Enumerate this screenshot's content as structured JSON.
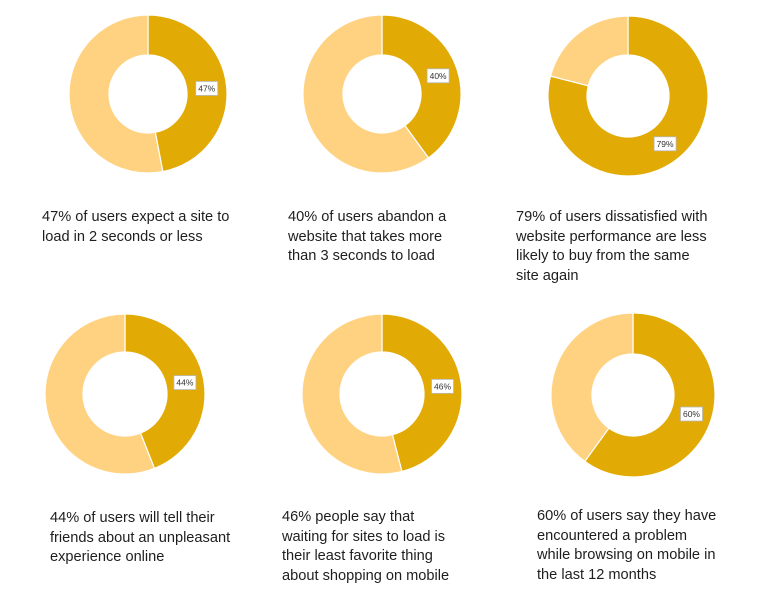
{
  "colors": {
    "value": "#E2AA05",
    "remainder": "#FFD282",
    "label_box_stroke": "#b8b8b8",
    "text": "#1e1e1e"
  },
  "chart_data": [
    {
      "type": "pie",
      "values": [
        47,
        53
      ],
      "data_labels": [
        "47%",
        ""
      ],
      "caption_lines": [
        "47% of users expect a site to",
        "load in 2 seconds or less"
      ]
    },
    {
      "type": "pie",
      "values": [
        40,
        60
      ],
      "data_labels": [
        "40%",
        ""
      ],
      "caption_lines": [
        "40% of users abandon a",
        "website that takes more",
        "than 3 seconds to load"
      ]
    },
    {
      "type": "pie",
      "values": [
        79,
        21
      ],
      "data_labels": [
        "79%",
        ""
      ],
      "caption_lines": [
        "79% of users dissatisfied with",
        "website performance are less",
        "likely to buy from the same",
        "site again"
      ]
    },
    {
      "type": "pie",
      "values": [
        44,
        56
      ],
      "data_labels": [
        "44%",
        ""
      ],
      "caption_lines": [
        "44% of users will tell their",
        "friends about an unpleasant",
        "experience online"
      ]
    },
    {
      "type": "pie",
      "values": [
        46,
        54
      ],
      "data_labels": [
        "46%",
        ""
      ],
      "caption_lines": [
        "46% people say that",
        "waiting for sites to load is",
        "their least favorite thing",
        "about shopping on mobile"
      ]
    },
    {
      "type": "pie",
      "values": [
        60,
        40
      ],
      "data_labels": [
        "60%",
        ""
      ],
      "caption_lines": [
        "60% of users say they have",
        "encountered a problem",
        "while browsing on mobile in",
        "the last 12 months"
      ]
    }
  ]
}
